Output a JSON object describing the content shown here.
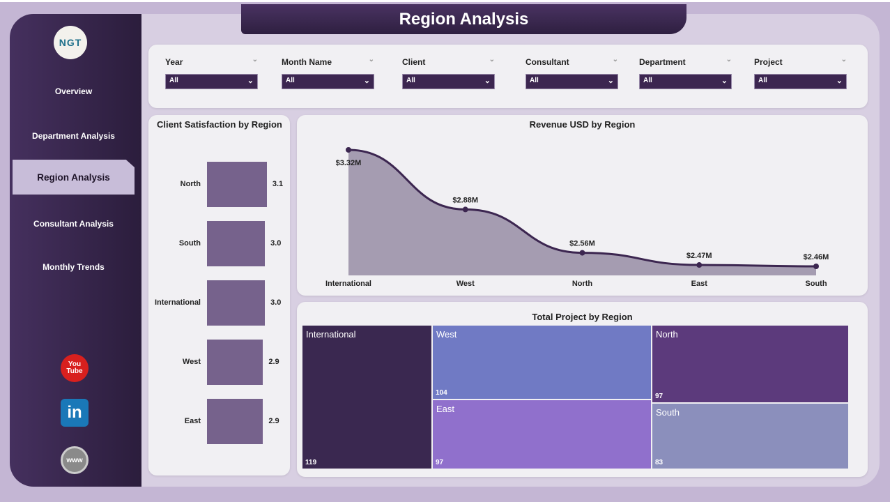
{
  "header": {
    "title": "Region Analysis"
  },
  "sidebar": {
    "logo": "NGT",
    "items": [
      {
        "label": "Overview"
      },
      {
        "label": "Department Analysis"
      },
      {
        "label": "Region Analysis",
        "active": true
      },
      {
        "label": "Consultant Analysis"
      },
      {
        "label": "Monthly Trends"
      }
    ],
    "social": [
      {
        "icon": "youtube-icon",
        "label": "You Tube"
      },
      {
        "icon": "linkedin-icon",
        "label": "in"
      },
      {
        "icon": "globe-www-icon",
        "label": "www"
      }
    ]
  },
  "filters": [
    {
      "label": "Year",
      "value": "All"
    },
    {
      "label": "Month Name",
      "value": "All"
    },
    {
      "label": "Client",
      "value": "All"
    },
    {
      "label": "Consultant",
      "value": "All"
    },
    {
      "label": "Department",
      "value": "All"
    },
    {
      "label": "Project",
      "value": "All"
    }
  ],
  "colors": {
    "accent": "#3c2650",
    "bar": "#76628c"
  },
  "chart_data": [
    {
      "type": "bar",
      "orientation": "horizontal",
      "title": "Client Satisfaction by Region",
      "categories": [
        "North",
        "South",
        "International",
        "West",
        "East"
      ],
      "values": [
        3.1,
        3.0,
        3.0,
        2.9,
        2.9
      ],
      "labels": [
        "3.1",
        "3.0",
        "3.0",
        "2.9",
        "2.9"
      ]
    },
    {
      "type": "area",
      "title": "Revenue USD by Region",
      "categories": [
        "International",
        "West",
        "North",
        "East",
        "South"
      ],
      "values": [
        3.32,
        2.88,
        2.56,
        2.47,
        2.46
      ],
      "labels": [
        "$3.32M",
        "$2.88M",
        "$2.56M",
        "$2.47M",
        "$2.46M"
      ]
    },
    {
      "type": "treemap",
      "title": "Total Project by Region",
      "categories": [
        "International",
        "West",
        "East",
        "North",
        "South"
      ],
      "values": [
        119,
        104,
        97,
        97,
        83
      ],
      "colors": [
        "#3a2850",
        "#707ac4",
        "#9070cc",
        "#5c3a7c",
        "#8b8fbc"
      ]
    }
  ]
}
